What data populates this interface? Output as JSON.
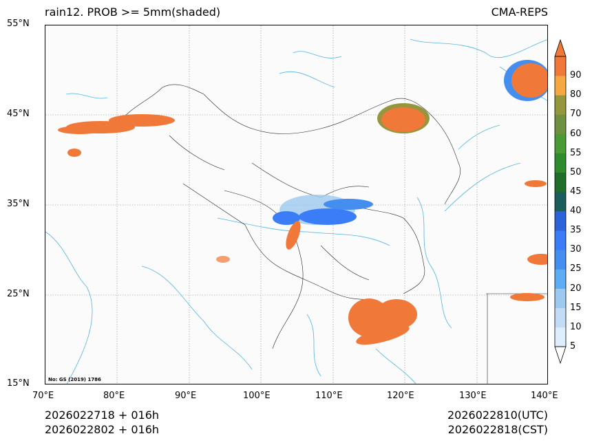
{
  "title_left": "rain12. PROB >= 5mm(shaded)",
  "title_right": "CMA-REPS",
  "lat_labels": [
    "55°N",
    "45°N",
    "35°N",
    "25°N",
    "15°N"
  ],
  "lon_labels": [
    "70°E",
    "80°E",
    "90°E",
    "100°E",
    "110°E",
    "120°E",
    "130°E",
    "140°E"
  ],
  "map_extent": {
    "lon": [
      70,
      140
    ],
    "lat": [
      15,
      55
    ]
  },
  "credit": "No: GS (2019) 1786",
  "colorbar": {
    "levels": [
      "5",
      "10",
      "15",
      "20",
      "25",
      "30",
      "35",
      "40",
      "45",
      "50",
      "55",
      "60",
      "70",
      "80",
      "90"
    ],
    "colors": [
      "#ddeeff",
      "#c3dcf6",
      "#9ec9ef",
      "#5cadf3",
      "#448ef0",
      "#3b7df7",
      "#2b63d8",
      "#1c5e5e",
      "#1f6e2a",
      "#2e8b2e",
      "#4a9a36",
      "#6f9040",
      "#96963e",
      "#f5a842",
      "#f07838"
    ]
  },
  "footer": {
    "init_line1": "2026022718  +  016h",
    "init_line2": "2026022802  +  016h",
    "valid_utc": "2026022810(UTC)",
    "valid_cst": "2026022818(CST)"
  }
}
